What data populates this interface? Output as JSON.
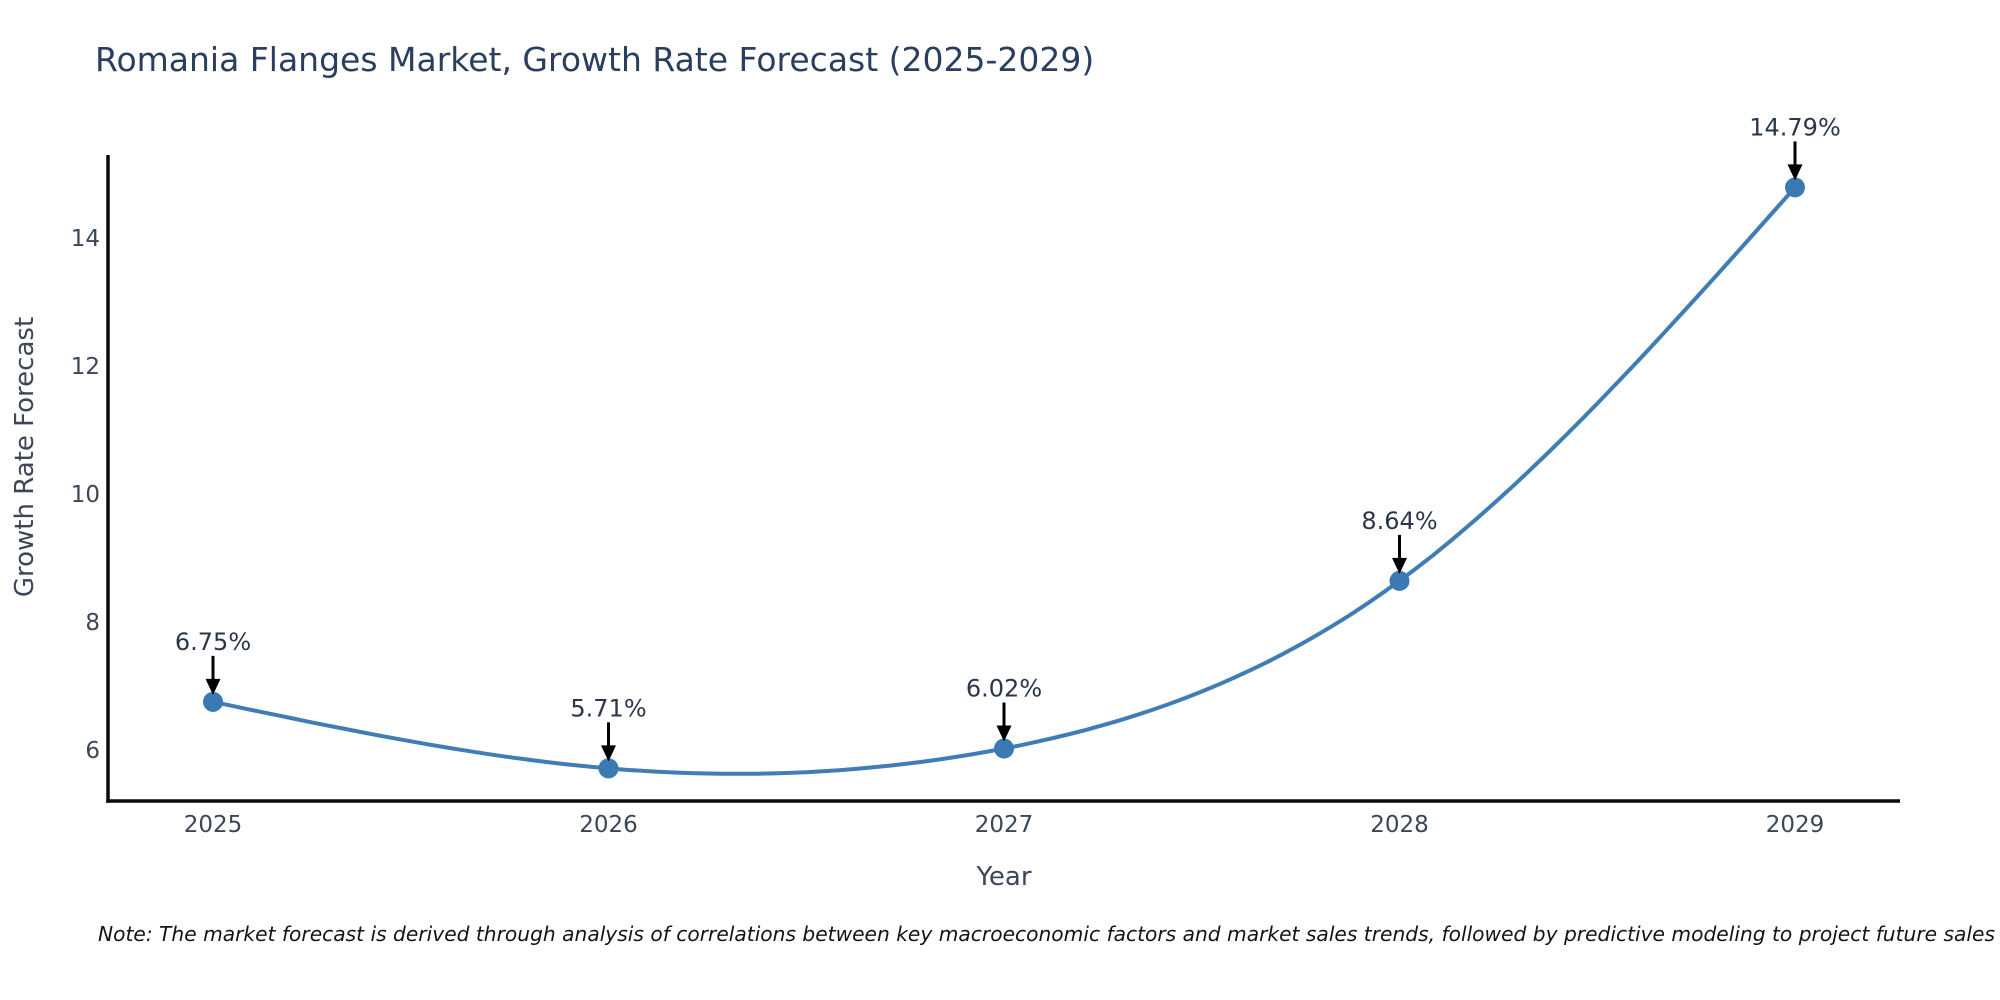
{
  "chart_data": {
    "type": "line",
    "title": "Romania Flanges Market, Growth Rate Forecast (2025-2029)",
    "xlabel": "Year",
    "ylabel": "Growth Rate Forecast",
    "categories": [
      "2025",
      "2026",
      "2027",
      "2028",
      "2029"
    ],
    "series": [
      {
        "name": "Growth Rate Forecast",
        "values": [
          6.75,
          5.71,
          6.02,
          8.64,
          14.79
        ],
        "point_labels": [
          "6.75%",
          "5.71%",
          "6.02%",
          "8.64%",
          "14.79%"
        ]
      }
    ],
    "ylim": [
      5.2,
      15.25
    ],
    "yticks": [
      6,
      8,
      10,
      12,
      14
    ],
    "line_shape": "spline",
    "grid": false,
    "legend": false,
    "annotation_style": "arrow-down-to-point",
    "note": "Note: The market forecast is derived through analysis of correlations between key macroeconomic factors and market sales trends, followed by predictive modeling to project future sales",
    "colors": {
      "line": "#3f7db4",
      "marker": "#3a79b2",
      "axis": "#0a0a0a",
      "title_text": "#2a3f5f",
      "axis_label_text": "#3b4657",
      "tick_text": "#3b4657",
      "annotation_text": "#2b3647",
      "arrow": "#000000",
      "note_text": "#141414",
      "background": "#ffffff"
    }
  }
}
